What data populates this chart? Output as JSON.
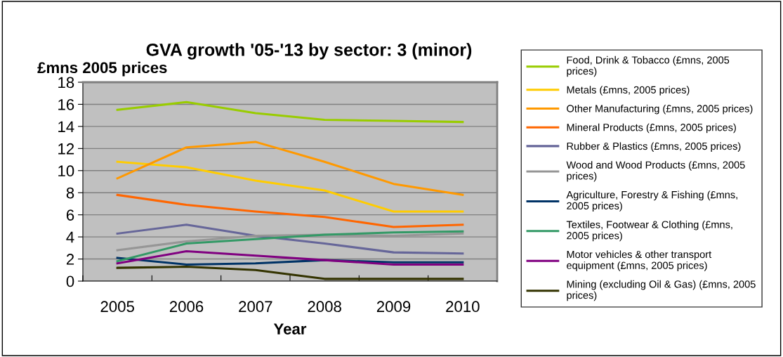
{
  "chart_data": {
    "type": "line",
    "title": "GVA growth '05-'13 by sector: 3 (minor)",
    "ylabel": "£mns 2005 prices",
    "xlabel": "Year",
    "categories": [
      "2005",
      "2006",
      "2007",
      "2008",
      "2009",
      "2010"
    ],
    "series": [
      {
        "name": "Food, Drink & Tobacco (£mns, 2005 prices)",
        "color": "#99cc00",
        "values": [
          15.5,
          16.2,
          15.2,
          14.6,
          14.5,
          14.4
        ]
      },
      {
        "name": "Metals (£mns, 2005 prices)",
        "color": "#ffcc00",
        "values": [
          10.8,
          10.3,
          9.1,
          8.2,
          6.3,
          6.3
        ]
      },
      {
        "name": "Other Manufacturing (£mns, 2005 prices)",
        "color": "#ff9900",
        "values": [
          9.3,
          12.1,
          12.6,
          10.8,
          8.8,
          7.8
        ]
      },
      {
        "name": "Mineral Products (£mns, 2005 prices)",
        "color": "#ff6600",
        "values": [
          7.8,
          6.9,
          6.3,
          5.8,
          4.9,
          5.1
        ]
      },
      {
        "name": "Rubber & Plastics (£mns, 2005 prices)",
        "color": "#666699",
        "values": [
          4.3,
          5.1,
          4.1,
          3.4,
          2.6,
          2.5
        ]
      },
      {
        "name": "Wood and Wood Products (£mns, 2005 prices)",
        "color": "#969696",
        "values": [
          2.8,
          3.6,
          4.1,
          4.2,
          4.1,
          4.3
        ]
      },
      {
        "name": "Agriculture, Forestry & Fishing (£mns, 2005 prices)",
        "color": "#003366",
        "values": [
          2.1,
          1.5,
          1.6,
          1.9,
          1.7,
          1.7
        ]
      },
      {
        "name": "Textiles, Footwear & Clothing (£mns, 2005 prices)",
        "color": "#339966",
        "values": [
          1.8,
          3.4,
          3.8,
          4.2,
          4.4,
          4.5
        ]
      },
      {
        "name": "Motor vehicles & other transport equipment (£mns, 2005 prices)",
        "color": "#800080",
        "values": [
          1.6,
          2.7,
          2.3,
          1.9,
          1.5,
          1.5
        ]
      },
      {
        "name": "Mining (excluding Oil & Gas) (£mns, 2005 prices)",
        "color": "#333300",
        "values": [
          1.2,
          1.3,
          1.0,
          0.2,
          0.2,
          0.2
        ]
      }
    ],
    "ylim": [
      0,
      18
    ],
    "yticks": [
      0,
      2,
      4,
      6,
      8,
      10,
      12,
      14,
      16,
      18
    ],
    "grid": "y",
    "legend": "right",
    "marker": "none",
    "line_style": "solid"
  }
}
